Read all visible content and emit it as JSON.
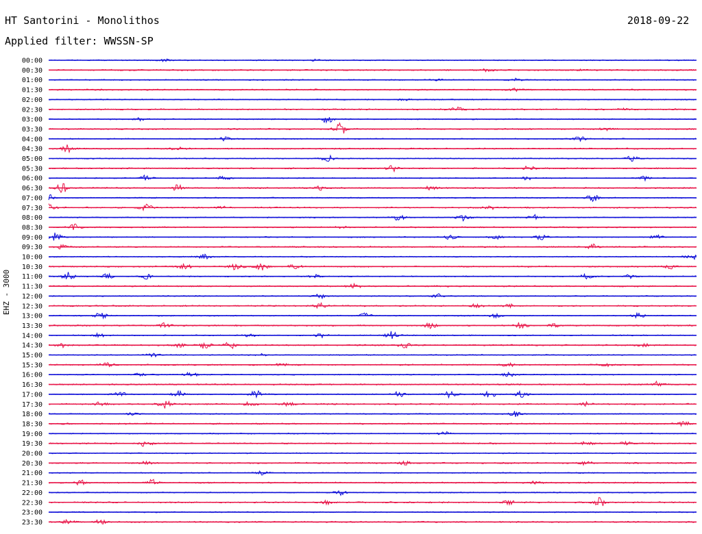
{
  "header": {
    "station": "HT Santorini - Monolithos",
    "date": "2018-09-22",
    "filter": "Applied filter: WWSSN-SP"
  },
  "colors": {
    "even_trace": "#1010d8",
    "odd_trace": "#e8174a",
    "background": "#ffffff",
    "text": "#000000"
  },
  "chart_data": {
    "type": "line",
    "title": "HT Santorini - Monolithos",
    "subtitle": "Applied filter: WWSSN-SP",
    "ylabel": "EHZ - 3000",
    "xlabel": "",
    "grid": false,
    "legend": "none",
    "rows": [
      {
        "label": "00:00",
        "color": "blue",
        "events": [
          [
            0.18,
            0.4
          ],
          [
            0.41,
            0.4
          ]
        ]
      },
      {
        "label": "00:30",
        "color": "red",
        "events": [
          [
            0.68,
            0.5
          ],
          [
            0.82,
            0.3
          ]
        ]
      },
      {
        "label": "01:00",
        "color": "blue",
        "events": [
          [
            0.6,
            0.3
          ],
          [
            0.72,
            0.5
          ]
        ]
      },
      {
        "label": "01:30",
        "color": "red",
        "events": [
          [
            0.72,
            0.6
          ]
        ]
      },
      {
        "label": "02:00",
        "color": "blue",
        "events": [
          [
            0.55,
            0.3
          ]
        ]
      },
      {
        "label": "02:30",
        "color": "red",
        "events": [
          [
            0.63,
            0.7
          ],
          [
            0.89,
            0.4
          ]
        ]
      },
      {
        "label": "03:00",
        "color": "blue",
        "events": [
          [
            0.14,
            0.5
          ],
          [
            0.43,
            1.6
          ]
        ]
      },
      {
        "label": "03:30",
        "color": "red",
        "events": [
          [
            0.45,
            2.6
          ],
          [
            0.86,
            0.4
          ]
        ]
      },
      {
        "label": "04:00",
        "color": "blue",
        "events": [
          [
            0.27,
            0.8
          ],
          [
            0.82,
            0.9
          ]
        ]
      },
      {
        "label": "04:30",
        "color": "red",
        "events": [
          [
            0.03,
            1.4
          ],
          [
            0.2,
            0.7
          ]
        ]
      },
      {
        "label": "05:00",
        "color": "blue",
        "events": [
          [
            0.43,
            1.5
          ],
          [
            0.9,
            1.0
          ]
        ]
      },
      {
        "label": "05:30",
        "color": "red",
        "events": [
          [
            0.53,
            1.2
          ],
          [
            0.74,
            0.8
          ]
        ]
      },
      {
        "label": "06:00",
        "color": "blue",
        "events": [
          [
            0.15,
            1.0
          ],
          [
            0.27,
            0.7
          ],
          [
            0.74,
            0.8
          ],
          [
            0.92,
            0.7
          ]
        ]
      },
      {
        "label": "06:30",
        "color": "red",
        "events": [
          [
            0.02,
            1.8
          ],
          [
            0.2,
            1.2
          ],
          [
            0.42,
            0.7
          ],
          [
            0.59,
            0.6
          ]
        ]
      },
      {
        "label": "07:00",
        "color": "blue",
        "events": [
          [
            0.0,
            1.3
          ],
          [
            0.84,
            1.2
          ]
        ]
      },
      {
        "label": "07:30",
        "color": "red",
        "events": [
          [
            0.0,
            1.5
          ],
          [
            0.15,
            1.4
          ],
          [
            0.27,
            0.5
          ],
          [
            0.68,
            0.7
          ]
        ]
      },
      {
        "label": "08:00",
        "color": "blue",
        "events": [
          [
            0.54,
            1.1
          ],
          [
            0.64,
            1.2
          ],
          [
            0.75,
            1.0
          ]
        ]
      },
      {
        "label": "08:30",
        "color": "red",
        "events": [
          [
            0.04,
            1.4
          ],
          [
            0.45,
            0.5
          ]
        ]
      },
      {
        "label": "09:00",
        "color": "blue",
        "events": [
          [
            0.01,
            1.6
          ],
          [
            0.62,
            0.9
          ],
          [
            0.69,
            0.8
          ],
          [
            0.76,
            1.0
          ],
          [
            0.94,
            0.9
          ]
        ]
      },
      {
        "label": "09:30",
        "color": "red",
        "events": [
          [
            0.02,
            0.7
          ],
          [
            0.84,
            1.1
          ]
        ]
      },
      {
        "label": "10:00",
        "color": "blue",
        "events": [
          [
            0.24,
            0.9
          ],
          [
            0.99,
            1.5
          ]
        ]
      },
      {
        "label": "10:30",
        "color": "red",
        "events": [
          [
            0.21,
            1.0
          ],
          [
            0.29,
            1.2
          ],
          [
            0.33,
            1.5
          ],
          [
            0.38,
            1.0
          ],
          [
            0.96,
            0.9
          ]
        ]
      },
      {
        "label": "11:00",
        "color": "blue",
        "events": [
          [
            0.03,
            1.4
          ],
          [
            0.09,
            0.9
          ],
          [
            0.15,
            1.0
          ],
          [
            0.41,
            0.6
          ],
          [
            0.83,
            1.0
          ],
          [
            0.9,
            0.8
          ]
        ]
      },
      {
        "label": "11:30",
        "color": "red",
        "events": [
          [
            0.47,
            1.1
          ]
        ]
      },
      {
        "label": "12:00",
        "color": "blue",
        "events": [
          [
            0.42,
            0.9
          ],
          [
            0.6,
            0.7
          ]
        ]
      },
      {
        "label": "12:30",
        "color": "red",
        "events": [
          [
            0.42,
            0.9
          ],
          [
            0.66,
            0.6
          ],
          [
            0.71,
            0.6
          ]
        ]
      },
      {
        "label": "13:00",
        "color": "blue",
        "events": [
          [
            0.08,
            1.2
          ],
          [
            0.49,
            0.9
          ],
          [
            0.69,
            0.8
          ],
          [
            0.91,
            1.0
          ]
        ]
      },
      {
        "label": "13:30",
        "color": "red",
        "events": [
          [
            0.18,
            0.9
          ],
          [
            0.59,
            0.9
          ],
          [
            0.73,
            1.3
          ],
          [
            0.78,
            0.6
          ]
        ]
      },
      {
        "label": "14:00",
        "color": "blue",
        "events": [
          [
            0.08,
            0.9
          ],
          [
            0.31,
            0.8
          ],
          [
            0.42,
            0.7
          ],
          [
            0.53,
            1.6
          ]
        ]
      },
      {
        "label": "14:30",
        "color": "red",
        "events": [
          [
            0.02,
            0.7
          ],
          [
            0.2,
            1.0
          ],
          [
            0.24,
            1.1
          ],
          [
            0.28,
            1.2
          ],
          [
            0.55,
            1.2
          ],
          [
            0.92,
            0.8
          ]
        ]
      },
      {
        "label": "15:00",
        "color": "blue",
        "events": [
          [
            0.16,
            0.8
          ],
          [
            0.33,
            0.5
          ]
        ]
      },
      {
        "label": "15:30",
        "color": "red",
        "events": [
          [
            0.09,
            0.9
          ],
          [
            0.36,
            0.6
          ],
          [
            0.71,
            0.7
          ],
          [
            0.86,
            0.6
          ]
        ]
      },
      {
        "label": "16:00",
        "color": "blue",
        "events": [
          [
            0.14,
            0.6
          ],
          [
            0.22,
            0.9
          ],
          [
            0.71,
            0.8
          ]
        ]
      },
      {
        "label": "16:30",
        "color": "red",
        "events": [
          [
            0.94,
            1.1
          ]
        ]
      },
      {
        "label": "17:00",
        "color": "blue",
        "events": [
          [
            0.11,
            1.0
          ],
          [
            0.2,
            1.1
          ],
          [
            0.32,
            1.3
          ],
          [
            0.54,
            0.9
          ],
          [
            0.62,
            1.1
          ],
          [
            0.68,
            1.2
          ],
          [
            0.73,
            1.0
          ]
        ]
      },
      {
        "label": "17:30",
        "color": "red",
        "events": [
          [
            0.08,
            0.7
          ],
          [
            0.18,
            1.5
          ],
          [
            0.31,
            0.8
          ],
          [
            0.37,
            0.7
          ],
          [
            0.83,
            0.7
          ]
        ]
      },
      {
        "label": "18:00",
        "color": "blue",
        "events": [
          [
            0.13,
            0.6
          ],
          [
            0.72,
            1.0
          ]
        ]
      },
      {
        "label": "18:30",
        "color": "red",
        "events": [
          [
            0.98,
            0.9
          ]
        ]
      },
      {
        "label": "19:00",
        "color": "blue",
        "events": [
          [
            0.61,
            0.7
          ]
        ]
      },
      {
        "label": "19:30",
        "color": "red",
        "events": [
          [
            0.15,
            1.2
          ],
          [
            0.83,
            0.7
          ],
          [
            0.89,
            0.5
          ]
        ]
      },
      {
        "label": "20:00",
        "color": "blue",
        "events": []
      },
      {
        "label": "20:30",
        "color": "red",
        "events": [
          [
            0.15,
            0.6
          ],
          [
            0.55,
            0.6
          ],
          [
            0.83,
            0.7
          ]
        ]
      },
      {
        "label": "21:00",
        "color": "blue",
        "events": [
          [
            0.33,
            0.7
          ]
        ]
      },
      {
        "label": "21:30",
        "color": "red",
        "events": [
          [
            0.05,
            1.0
          ],
          [
            0.16,
            1.0
          ],
          [
            0.75,
            0.6
          ]
        ]
      },
      {
        "label": "22:00",
        "color": "blue",
        "events": [
          [
            0.45,
            0.9
          ]
        ]
      },
      {
        "label": "22:30",
        "color": "red",
        "events": [
          [
            0.43,
            0.7
          ],
          [
            0.71,
            0.7
          ],
          [
            0.85,
            1.6
          ]
        ]
      },
      {
        "label": "23:00",
        "color": "blue",
        "events": []
      },
      {
        "label": "23:30",
        "color": "red",
        "events": [
          [
            0.03,
            0.8
          ],
          [
            0.08,
            0.8
          ]
        ]
      }
    ]
  }
}
